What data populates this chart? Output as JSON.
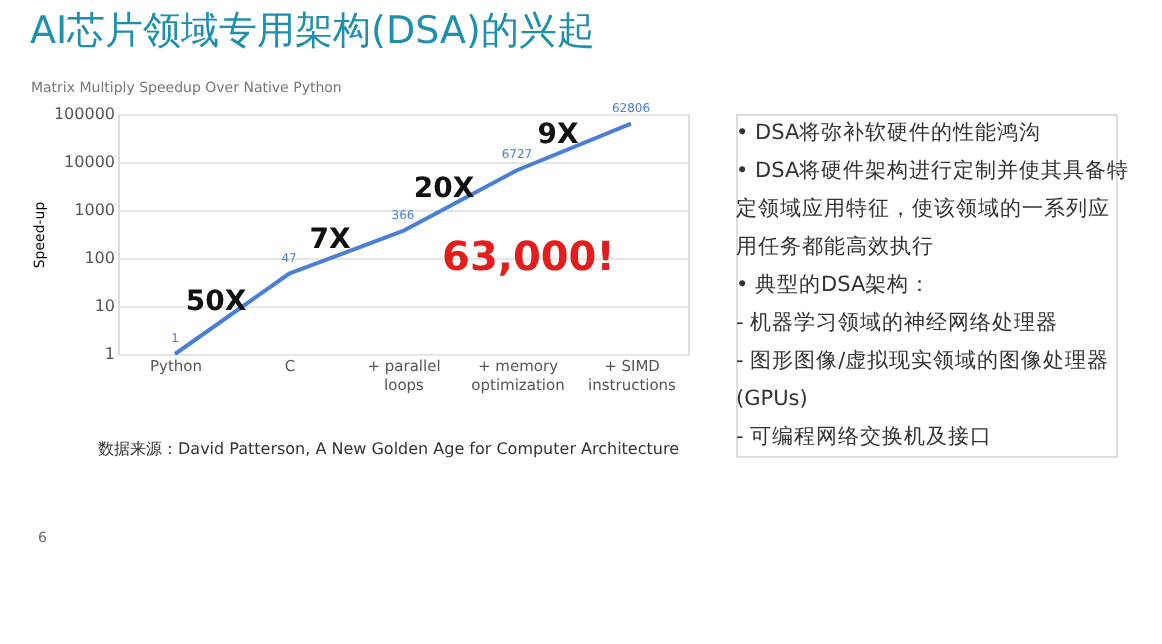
{
  "chart_data": [
    {
      "type": "line",
      "title": "AI芯片领域专用架构(DSA)的兴起",
      "subtitle": "Matrix Multiply Speedup Over Native Python",
      "ylabel": "Speed-up",
      "categories": [
        "Python",
        "C",
        "+ parallel loops",
        "+ memory optimization",
        "+ SIMD instructions"
      ],
      "series": [
        {
          "color": "#4a7fd6",
          "values": [
            1,
            47,
            366,
            6727,
            62806
          ]
        }
      ],
      "log": true,
      "ylim": [
        1,
        100000
      ],
      "yticks": [
        1,
        10,
        100,
        1000,
        10000,
        100000
      ],
      "grid": "y",
      "data_labels": true,
      "annotations": [
        "50X",
        "7X",
        "20X",
        "9X",
        "63,000!",
        "数据来源：David Patterson, A New Golden Age for Computer Architecture",
        "6"
      ]
    },
    {
      "type": "other",
      "annotations": [
        "• DSA将弥补软硬件的性能鸿沟",
        "• DSA将硬件架构进行定制并使其具备特",
        "定领域应用特征，使该领域的一系列应",
        "用任务都能高效执行",
        "• 典型的DSA架构：",
        "- 机器学习领域的神经网络处理器",
        "- 图形图像/虚拟现实领域的图像处理器",
        "(GPUs)",
        "- 可编程网络交换机及接口"
      ]
    }
  ]
}
